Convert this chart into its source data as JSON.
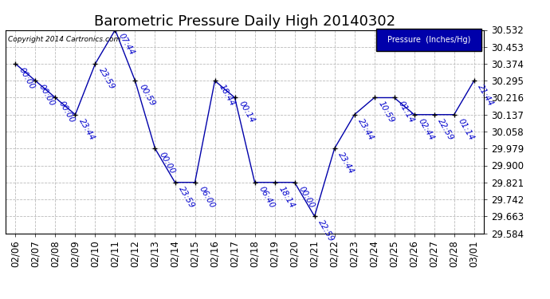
{
  "title": "Barometric Pressure Daily High 20140302",
  "copyright": "Copyright 2014 Cartronics.com",
  "legend_label": "Pressure  (Inches/Hg)",
  "xlabels": [
    "02/06",
    "02/07",
    "02/08",
    "02/09",
    "02/10",
    "02/11",
    "02/12",
    "02/13",
    "02/14",
    "02/15",
    "02/16",
    "02/17",
    "02/18",
    "02/19",
    "02/20",
    "02/21",
    "02/22",
    "02/23",
    "02/24",
    "02/25",
    "02/26",
    "02/27",
    "02/28",
    "03/01"
  ],
  "x_indices": [
    0,
    1,
    2,
    3,
    4,
    5,
    6,
    7,
    8,
    9,
    10,
    11,
    12,
    13,
    14,
    15,
    16,
    17,
    18,
    19,
    20,
    21,
    22,
    23
  ],
  "y_values": [
    30.374,
    30.295,
    30.216,
    30.137,
    30.374,
    30.532,
    30.295,
    29.979,
    29.821,
    29.821,
    30.295,
    30.216,
    29.821,
    29.821,
    29.821,
    29.663,
    29.979,
    30.137,
    30.216,
    30.216,
    30.137,
    30.137,
    30.137,
    30.295
  ],
  "time_labels": [
    "00:00",
    "00:00",
    "00:00",
    "23:44",
    "23:59",
    "07:44",
    "00:59",
    "00:00",
    "23:59",
    "06:00",
    "18:44",
    "00:14",
    "06:40",
    "18:14",
    "00:00",
    "22:59",
    "23:44",
    "23:44",
    "10:59",
    "01:14",
    "02:44",
    "22:59",
    "01:14",
    "21:44"
  ],
  "ylim_min": 29.584,
  "ylim_max": 30.532,
  "ytick_values": [
    29.584,
    29.663,
    29.742,
    29.821,
    29.9,
    29.979,
    30.058,
    30.137,
    30.216,
    30.295,
    30.374,
    30.453,
    30.532
  ],
  "ytick_labels": [
    "29.584",
    "29.663",
    "29.742",
    "29.821",
    "29.900",
    "29.979",
    "30.058",
    "30.137",
    "30.216",
    "30.295",
    "30.374",
    "30.453",
    "30.532"
  ],
  "line_color": "#0000AA",
  "marker_color": "#000000",
  "label_color": "#0000CC",
  "background_color": "#ffffff",
  "grid_color": "#bbbbbb",
  "title_fontsize": 13,
  "tick_fontsize": 8.5,
  "annotation_fontsize": 7.5
}
